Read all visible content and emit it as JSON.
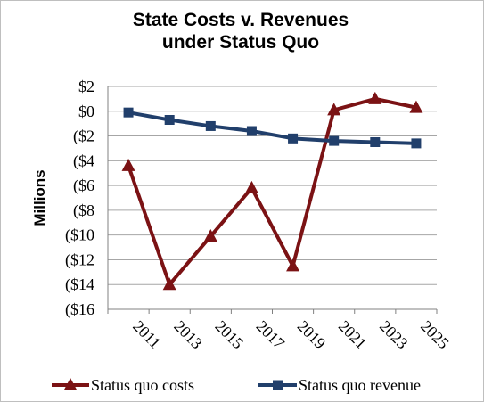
{
  "chart_data": {
    "type": "line",
    "title_lines": [
      "State Costs v. Revenues",
      "under Status Quo"
    ],
    "ylabel": "Millions",
    "xlabel": "",
    "x": [
      "2011",
      "2013",
      "2015",
      "2017",
      "2019",
      "2021",
      "2023",
      "2025"
    ],
    "ylim": [
      -16,
      2
    ],
    "yticks": [
      2,
      0,
      -2,
      -4,
      -6,
      -8,
      -10,
      -12,
      -14,
      -16
    ],
    "ytick_labels": [
      "$2",
      "$0",
      "($2",
      "($4",
      "($6",
      "($8",
      "($10",
      "($12",
      "($14",
      "($16"
    ],
    "grid": true,
    "legend_position": "bottom",
    "series": [
      {
        "name": "Status quo costs",
        "color": "#7b1214",
        "marker": "triangle",
        "values": [
          -4.4,
          -14.0,
          -10.1,
          -6.2,
          -12.5,
          0.1,
          1.0,
          0.3
        ]
      },
      {
        "name": "Status quo revenue",
        "color": "#213f6b",
        "marker": "square",
        "values": [
          -0.1,
          -0.7,
          -1.2,
          -1.6,
          -2.2,
          -2.4,
          -2.5,
          -2.6
        ]
      }
    ]
  }
}
